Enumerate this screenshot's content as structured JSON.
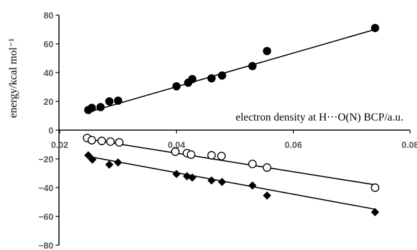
{
  "chart_data": {
    "type": "scatter",
    "xlabel": "electron density at H···O(N) BCP/a.u.",
    "ylabel": "energy/kcal mol⁻¹",
    "xlim": [
      0.02,
      0.08
    ],
    "ylim": [
      -80,
      80
    ],
    "xticks": [
      "0.02",
      "0.04",
      "0.06",
      "0.08"
    ],
    "yticks": [
      "80",
      "60",
      "40",
      "20",
      "0",
      "−20",
      "−40",
      "−60",
      "−80"
    ],
    "grid": false,
    "series": [
      {
        "marker": "filled-circle",
        "color": "#000000",
        "x": [
          0.0249,
          0.0255,
          0.027,
          0.0285,
          0.03,
          0.04,
          0.042,
          0.0427,
          0.046,
          0.0478,
          0.053,
          0.0555,
          0.074
        ],
        "y": [
          14,
          15.5,
          16,
          20,
          20.5,
          30.5,
          33,
          35.5,
          36,
          38,
          44.5,
          55,
          71
        ],
        "trendline": [
          [
            0.0245,
            12
          ],
          [
            0.074,
            70
          ]
        ]
      },
      {
        "marker": "open-circle",
        "color": "#000000",
        "x": [
          0.0247,
          0.0255,
          0.0272,
          0.0287,
          0.0302,
          0.0398,
          0.0418,
          0.0425,
          0.046,
          0.0477,
          0.053,
          0.0555,
          0.074
        ],
        "y": [
          -5.5,
          -7,
          -7.5,
          -8,
          -8.5,
          -15,
          -16,
          -17,
          -17.5,
          -18,
          -23.5,
          -26,
          -40
        ],
        "trendline": [
          [
            0.0245,
            -6
          ],
          [
            0.074,
            -38
          ]
        ]
      },
      {
        "marker": "filled-diamond",
        "color": "#000000",
        "x": [
          0.0249,
          0.0256,
          0.0285,
          0.03,
          0.04,
          0.0418,
          0.0427,
          0.046,
          0.0478,
          0.053,
          0.0555,
          0.074
        ],
        "y": [
          -17.5,
          -20.5,
          -24,
          -22.5,
          -30.5,
          -32,
          -33,
          -35,
          -36,
          -38.5,
          -45.5,
          -57
        ],
        "trendline": [
          [
            0.0245,
            -18
          ],
          [
            0.074,
            -55
          ]
        ]
      }
    ]
  }
}
